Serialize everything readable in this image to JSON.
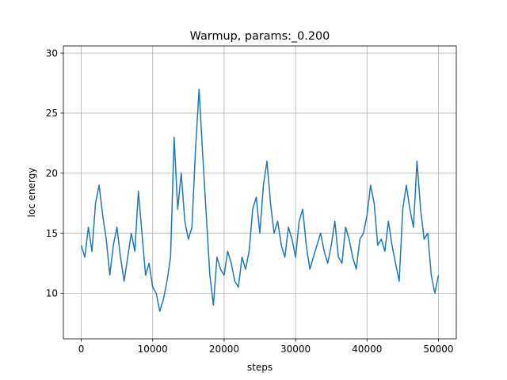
{
  "chart_data": {
    "type": "line",
    "title": "Warmup, params:_0.200",
    "xlabel": "steps",
    "ylabel": "loc energy",
    "xlim": [
      -2500,
      52500
    ],
    "ylim": [
      6.2,
      30.6
    ],
    "xticks": [
      0,
      10000,
      20000,
      30000,
      40000,
      50000
    ],
    "xtick_labels": [
      "0",
      "10000",
      "20000",
      "30000",
      "40000",
      "50000"
    ],
    "yticks": [
      10,
      15,
      20,
      25,
      30
    ],
    "ytick_labels": [
      "10",
      "15",
      "20",
      "25",
      "30"
    ],
    "grid": true,
    "series_color": "#1f77b4",
    "series": [
      {
        "x": [
          0,
          500,
          1000,
          1500,
          2000,
          2500,
          3000,
          3500,
          4000,
          4500,
          5000,
          5500,
          6000,
          6500,
          7000,
          7500,
          8000,
          8500,
          9000,
          9500,
          10000,
          10500,
          11000,
          11500,
          12000,
          12500,
          13000,
          13500,
          14000,
          14500,
          15000,
          15500,
          16000,
          16500,
          17000,
          17500,
          18000,
          18500,
          19000,
          19500,
          20000,
          20500,
          21000,
          21500,
          22000,
          22500,
          23000,
          23500,
          24000,
          24500,
          25000,
          25500,
          26000,
          26500,
          27000,
          27500,
          28000,
          28500,
          29000,
          29500,
          30000,
          30500,
          31000,
          31500,
          32000,
          32500,
          33000,
          33500,
          34000,
          34500,
          35000,
          35500,
          36000,
          36500,
          37000,
          37500,
          38000,
          38500,
          39000,
          39500,
          40000,
          40500,
          41000,
          41500,
          42000,
          42500,
          43000,
          43500,
          44000,
          44500,
          45000,
          45500,
          46000,
          46500,
          47000,
          47500,
          48000,
          48500,
          49000,
          49500,
          50000
        ],
        "y": [
          14.0,
          13.0,
          15.5,
          13.5,
          17.5,
          19.0,
          16.5,
          14.5,
          11.5,
          14.0,
          15.5,
          13.0,
          11.0,
          13.0,
          15.0,
          13.5,
          18.5,
          15.0,
          11.5,
          12.5,
          10.5,
          10.0,
          8.5,
          9.5,
          11.0,
          13.0,
          23.0,
          17.0,
          20.0,
          16.0,
          14.5,
          15.5,
          22.0,
          27.0,
          21.5,
          16.5,
          11.5,
          9.0,
          13.0,
          12.0,
          11.5,
          13.5,
          12.5,
          11.0,
          10.5,
          13.0,
          12.0,
          13.5,
          17.0,
          18.0,
          15.0,
          19.0,
          21.0,
          17.5,
          15.0,
          16.0,
          14.0,
          13.0,
          15.5,
          14.5,
          13.0,
          16.0,
          17.0,
          14.0,
          12.0,
          13.0,
          14.0,
          15.0,
          13.5,
          12.5,
          14.0,
          16.0,
          13.0,
          12.5,
          15.5,
          14.5,
          13.0,
          12.0,
          14.5,
          15.0,
          16.5,
          19.0,
          17.5,
          14.0,
          14.5,
          13.5,
          16.0,
          14.0,
          12.5,
          11.0,
          17.0,
          19.0,
          17.0,
          15.5,
          21.0,
          17.0,
          14.5,
          15.0,
          11.5,
          10.0,
          11.5
        ]
      }
    ]
  }
}
